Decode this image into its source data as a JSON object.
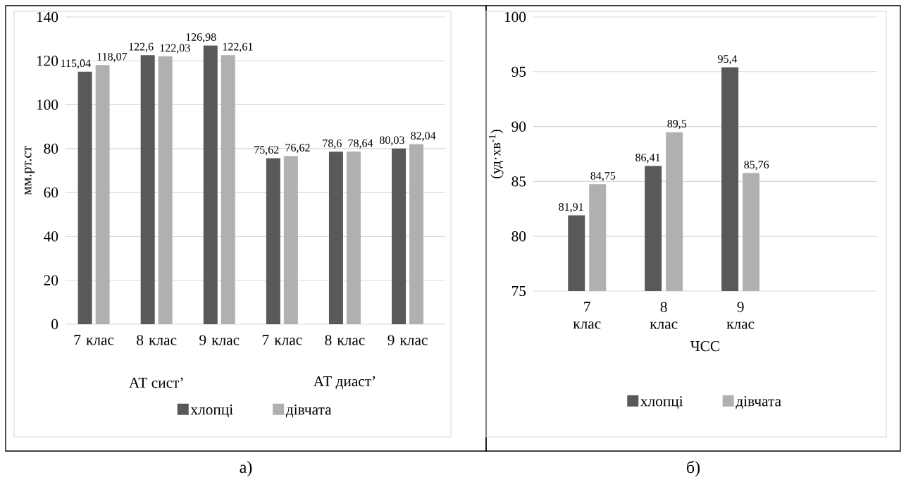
{
  "chart_data": [
    {
      "type": "bar",
      "categories": [
        "7 клас",
        "8 клас",
        "9 клас",
        "7 клас",
        "8 клас",
        "9 клас"
      ],
      "ylabel": "мм.рт.ст",
      "ylim": [
        0,
        140
      ],
      "yticks": [
        0,
        20,
        40,
        60,
        80,
        100,
        120,
        140
      ],
      "grid": "y",
      "legend": "bottom",
      "annotations": [
        "АТ сист’",
        "АТ диаст’",
        "а)"
      ],
      "series": [
        {
          "name": "хлопці",
          "color": "#595959",
          "values": [
            115.04,
            122.6,
            126.98,
            75.62,
            78.6,
            80.03
          ],
          "value_labels": [
            "115,04",
            "122,6",
            "126,98",
            "75,62",
            "78,6",
            "80,03"
          ]
        },
        {
          "name": "дівчата",
          "color": "#b0b0b0",
          "values": [
            118.07,
            122.03,
            122.61,
            76.62,
            78.64,
            82.04
          ],
          "value_labels": [
            "118,07",
            "122,03",
            "122,61",
            "76,62",
            "78,64",
            "82,04"
          ]
        }
      ]
    },
    {
      "type": "bar",
      "categories": [
        "7 клас",
        "8 клас",
        "9 клас"
      ],
      "xlabel": "ЧСС",
      "ylabel": "(уд·хв$^{-1}$)",
      "ylim": [
        75,
        100
      ],
      "yticks": [
        75,
        80,
        85,
        90,
        95,
        100
      ],
      "grid": "y",
      "legend": "bottom",
      "annotations": [
        "б)"
      ],
      "series": [
        {
          "name": "хлопці",
          "color": "#595959",
          "values": [
            81.91,
            86.41,
            95.4
          ],
          "value_labels": [
            "81,91",
            "86,41",
            "95,4"
          ]
        },
        {
          "name": "дівчата",
          "color": "#b0b0b0",
          "values": [
            84.75,
            89.5,
            85.76
          ],
          "value_labels": [
            "84,75",
            "89,5",
            "85,76"
          ]
        }
      ]
    }
  ]
}
